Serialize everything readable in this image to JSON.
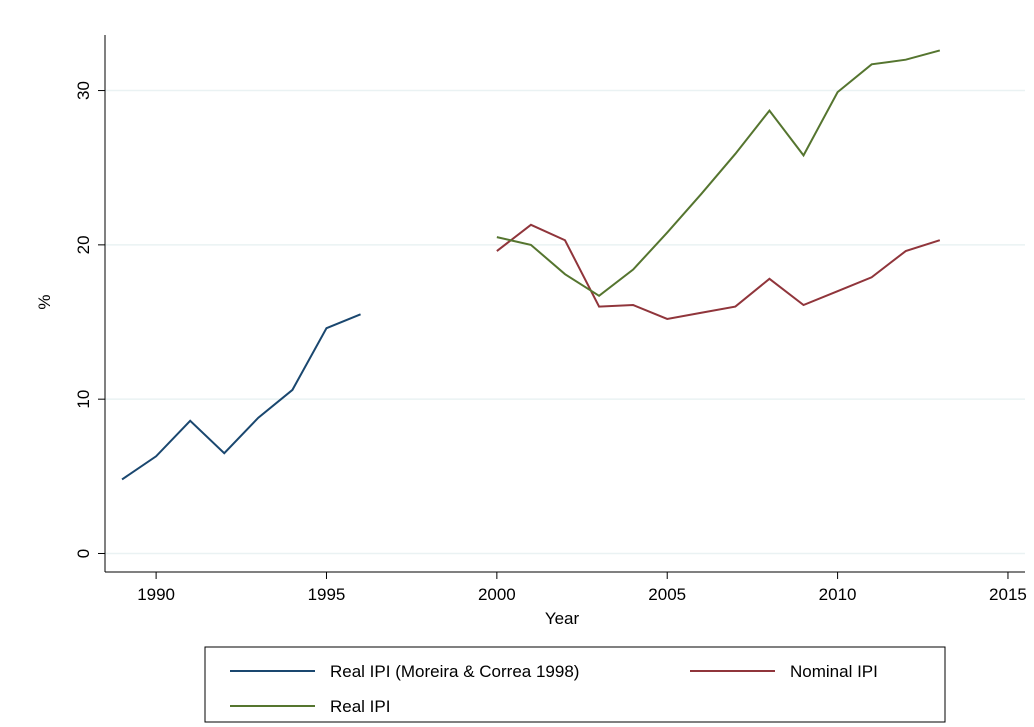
{
  "chart_data": {
    "type": "line",
    "xlabel": "Year",
    "ylabel": "%",
    "x": [
      1989,
      1990,
      1991,
      1992,
      1993,
      1994,
      1995,
      1996,
      1997,
      1998,
      1999,
      2000,
      2001,
      2002,
      2003,
      2004,
      2005,
      2006,
      2007,
      2008,
      2009,
      2010,
      2011,
      2012,
      2013
    ],
    "series": [
      {
        "name": "Real IPI (Moreira & Correa 1998)",
        "color": "#1a476f",
        "values": [
          4.8,
          6.3,
          8.6,
          6.5,
          8.8,
          10.6,
          14.6,
          15.5,
          null,
          null,
          null,
          null,
          null,
          null,
          null,
          null,
          null,
          null,
          null,
          null,
          null,
          null,
          null,
          null,
          null
        ]
      },
      {
        "name": "Nominal IPI",
        "color": "#90353b",
        "values": [
          null,
          null,
          null,
          null,
          null,
          null,
          null,
          null,
          null,
          null,
          null,
          19.6,
          21.3,
          20.3,
          16.0,
          16.1,
          15.2,
          15.6,
          16.0,
          17.8,
          16.1,
          17.0,
          17.9,
          19.6,
          20.3
        ]
      },
      {
        "name": "Real IPI",
        "color": "#55752f",
        "values": [
          null,
          null,
          null,
          null,
          null,
          null,
          null,
          null,
          null,
          null,
          null,
          20.5,
          20.0,
          18.1,
          16.7,
          18.4,
          20.8,
          23.3,
          25.9,
          28.7,
          25.8,
          29.9,
          31.7,
          32.0,
          32.6
        ]
      }
    ],
    "xlim": [
      1988.5,
      2015.5
    ],
    "xticks": [
      1990,
      1995,
      2000,
      2005,
      2010,
      2015
    ],
    "ylim": [
      -1.2,
      33.6
    ],
    "yticks": [
      0,
      10,
      20,
      30
    ],
    "grid": true
  }
}
